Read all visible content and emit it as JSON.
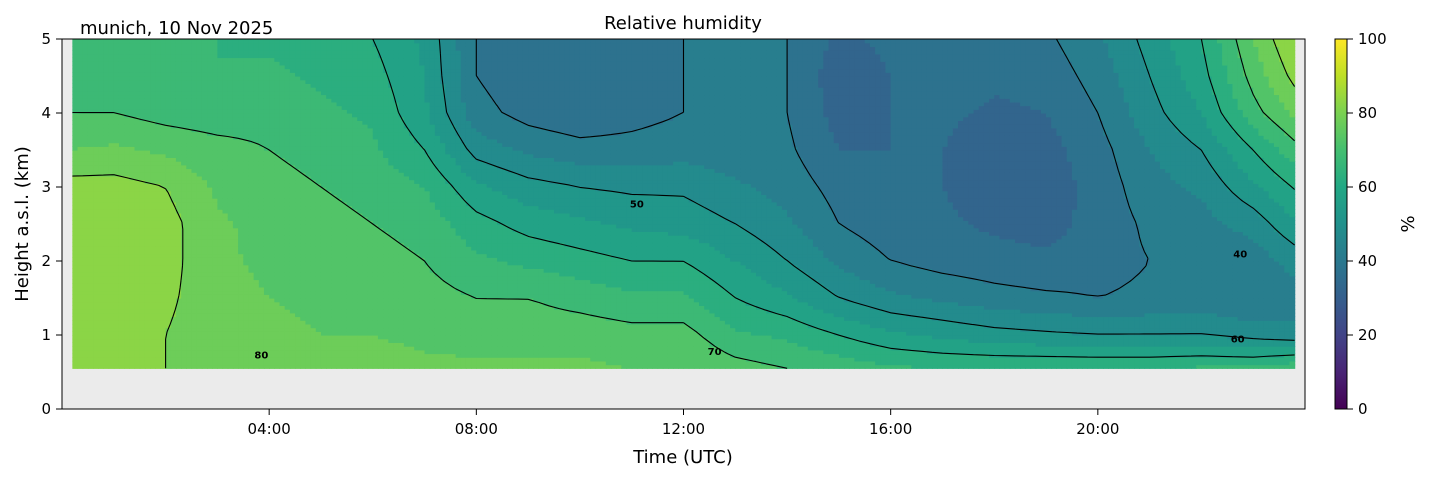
{
  "chart_data": {
    "type": "heatmap",
    "subtype": "filled-contour",
    "title": "Relative humidity",
    "subtitle": "munich, 10 Nov 2025",
    "xlabel": "Time (UTC)",
    "ylabel": "Height a.s.l. (km)",
    "xlim": [
      0,
      24
    ],
    "ylim": [
      0,
      5
    ],
    "x_ticks": [
      {
        "value": 4,
        "label": "04:00"
      },
      {
        "value": 8,
        "label": "08:00"
      },
      {
        "value": 12,
        "label": "12:00"
      },
      {
        "value": 16,
        "label": "16:00"
      },
      {
        "value": 20,
        "label": "20:00"
      }
    ],
    "y_ticks": [
      {
        "value": 0,
        "label": "0"
      },
      {
        "value": 1,
        "label": "1"
      },
      {
        "value": 2,
        "label": "2"
      },
      {
        "value": 3,
        "label": "3"
      },
      {
        "value": 4,
        "label": "4"
      },
      {
        "value": 5,
        "label": "5"
      }
    ],
    "colorbar": {
      "label": "%",
      "range": [
        0,
        100
      ],
      "colormap": "viridis",
      "ticks": [
        {
          "value": 0,
          "label": "0"
        },
        {
          "value": 20,
          "label": "20"
        },
        {
          "value": 40,
          "label": "40"
        },
        {
          "value": 60,
          "label": "60"
        },
        {
          "value": 80,
          "label": "80"
        },
        {
          "value": 100,
          "label": "100"
        }
      ]
    },
    "data_time_range": [
      0.2,
      23.8
    ],
    "heights_km": [
      0.55,
      1,
      1.5,
      2,
      2.5,
      3,
      3.5,
      4,
      4.5,
      5
    ],
    "times_h": [
      0,
      1,
      2,
      3,
      4,
      5,
      6,
      7,
      8,
      9,
      10,
      11,
      12,
      13,
      14,
      15,
      16,
      17,
      18,
      19,
      20,
      21,
      22,
      23,
      24
    ],
    "rh_percent": [
      [
        82,
        82,
        83,
        84,
        84,
        82,
        75,
        70,
        68,
        68
      ],
      [
        82,
        82,
        84,
        84,
        84,
        82,
        76,
        70,
        67,
        66
      ],
      [
        80,
        80,
        81,
        82,
        82,
        80,
        74,
        68,
        66,
        66
      ],
      [
        78,
        77,
        77,
        76,
        76,
        74,
        72,
        67,
        65,
        65
      ],
      [
        78,
        76,
        75,
        74,
        73,
        72,
        70,
        68,
        66,
        64
      ],
      [
        77,
        75,
        74,
        72,
        72,
        70,
        68,
        66,
        64,
        62
      ],
      [
        77,
        75,
        73,
        72,
        70,
        68,
        66,
        64,
        62,
        60
      ],
      [
        76,
        74,
        72,
        70,
        68,
        65,
        60,
        56,
        55,
        54
      ],
      [
        76,
        73,
        70,
        66,
        62,
        56,
        48,
        42,
        40,
        40
      ],
      [
        76,
        73,
        70,
        64,
        58,
        52,
        44,
        38,
        36,
        36
      ],
      [
        76,
        73,
        68,
        62,
        56,
        50,
        42,
        36,
        35,
        35
      ],
      [
        75,
        72,
        66,
        60,
        54,
        49,
        42,
        38,
        37,
        37
      ],
      [
        75,
        72,
        66,
        60,
        53,
        49,
        43,
        40,
        40,
        40
      ],
      [
        72,
        66,
        60,
        55,
        50,
        46,
        42,
        41,
        42,
        42
      ],
      [
        70,
        64,
        56,
        50,
        46,
        43,
        41,
        40,
        40,
        40
      ],
      [
        68,
        60,
        50,
        44,
        40,
        38,
        35,
        33,
        32,
        34
      ],
      [
        66,
        56,
        46,
        40,
        37,
        36,
        35,
        35,
        35,
        36
      ],
      [
        65,
        54,
        44,
        38,
        36,
        35,
        35,
        36,
        38,
        40
      ],
      [
        65,
        52,
        42,
        37,
        34,
        32,
        32,
        34,
        36,
        38
      ],
      [
        65,
        51,
        41,
        36,
        33,
        32,
        33,
        35,
        37,
        39
      ],
      [
        65,
        50,
        40,
        38,
        37,
        37,
        38,
        40,
        42,
        44
      ],
      [
        65,
        50,
        41,
        40,
        41,
        43,
        45,
        48,
        50,
        52
      ],
      [
        66,
        50,
        42,
        41,
        43,
        46,
        50,
        55,
        58,
        60
      ],
      [
        66,
        48,
        40,
        42,
        47,
        54,
        60,
        68,
        72,
        75
      ],
      [
        70,
        46,
        44,
        48,
        56,
        62,
        70,
        78,
        84,
        88
      ]
    ],
    "contour_levels": [
      40,
      50,
      60,
      70,
      80
    ],
    "contour_labels": [
      {
        "text": "80",
        "time": 3.85,
        "height": 0.68
      },
      {
        "text": "70",
        "time": 12.6,
        "height": 0.73
      },
      {
        "text": "50",
        "time": 11.1,
        "height": 2.72
      },
      {
        "text": "40",
        "time": 22.75,
        "height": 2.05
      },
      {
        "text": "60",
        "time": 22.7,
        "height": 0.9
      }
    ]
  }
}
